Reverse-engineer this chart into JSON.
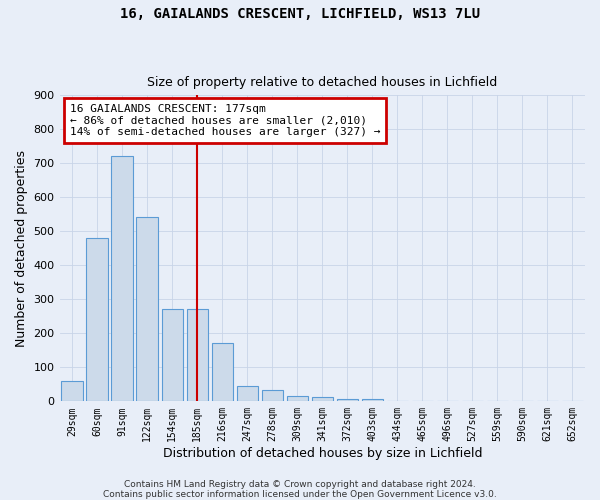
{
  "title": "16, GAIALANDS CRESCENT, LICHFIELD, WS13 7LU",
  "subtitle": "Size of property relative to detached houses in Lichfield",
  "xlabel": "Distribution of detached houses by size in Lichfield",
  "ylabel": "Number of detached properties",
  "categories": [
    "29sqm",
    "60sqm",
    "91sqm",
    "122sqm",
    "154sqm",
    "185sqm",
    "216sqm",
    "247sqm",
    "278sqm",
    "309sqm",
    "341sqm",
    "372sqm",
    "403sqm",
    "434sqm",
    "465sqm",
    "496sqm",
    "527sqm",
    "559sqm",
    "590sqm",
    "621sqm",
    "652sqm"
  ],
  "values": [
    60,
    480,
    720,
    540,
    270,
    270,
    170,
    45,
    33,
    17,
    13,
    8,
    8,
    0,
    0,
    0,
    0,
    0,
    0,
    0,
    0
  ],
  "bar_color": "#ccdaea",
  "bar_edge_color": "#5b9bd5",
  "red_line_x": 5.0,
  "annotation_text": "16 GAIALANDS CRESCENT: 177sqm\n← 86% of detached houses are smaller (2,010)\n14% of semi-detached houses are larger (327) →",
  "annotation_box_facecolor": "#ffffff",
  "annotation_box_edgecolor": "#cc0000",
  "ylim": [
    0,
    900
  ],
  "yticks": [
    0,
    100,
    200,
    300,
    400,
    500,
    600,
    700,
    800,
    900
  ],
  "footnote1": "Contains HM Land Registry data © Crown copyright and database right 2024.",
  "footnote2": "Contains public sector information licensed under the Open Government Licence v3.0.",
  "grid_color": "#c8d4e8",
  "background_color": "#e8eef8",
  "title_fontsize": 10,
  "subtitle_fontsize": 9,
  "tick_fontsize": 7,
  "ytick_fontsize": 8,
  "xlabel_fontsize": 9,
  "ylabel_fontsize": 9,
  "annotation_fontsize": 8,
  "footnote_fontsize": 6.5,
  "bar_width": 0.85
}
